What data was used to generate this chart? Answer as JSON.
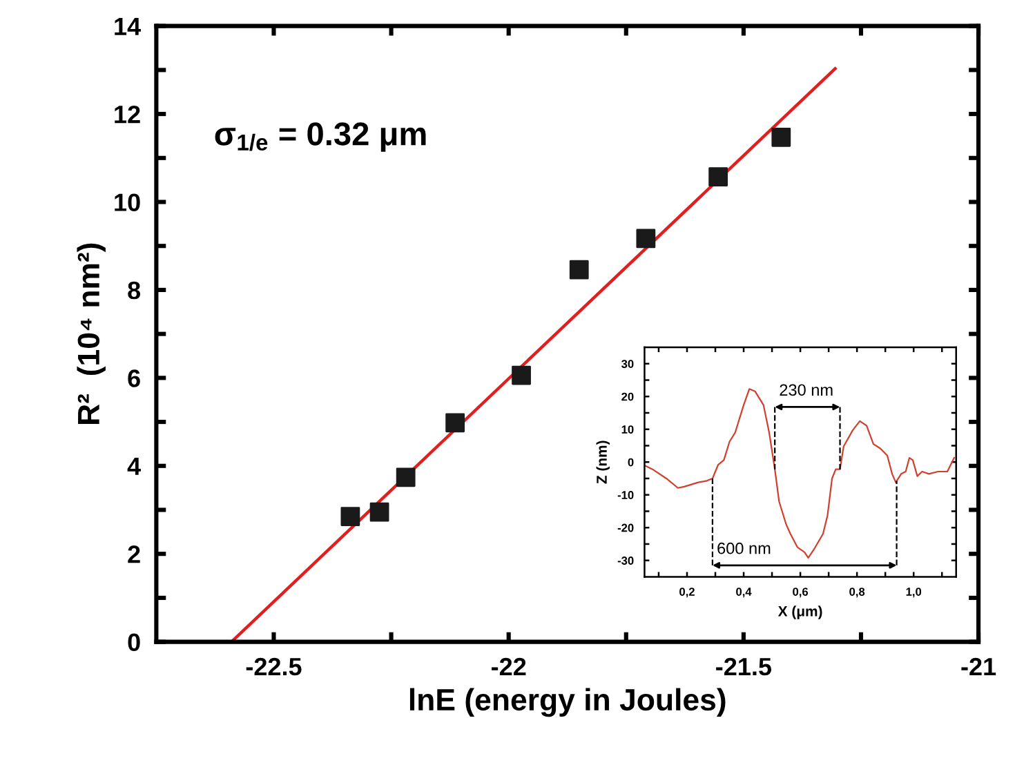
{
  "chart_data": [
    {
      "type": "scatter",
      "xlabel": "lnE (energy in Joules)",
      "ylabel": "R²  (10⁴ nm²)",
      "annotations": [
        "σ$_{1/e}$ = 0.32 μm"
      ],
      "series": [
        {
          "marker": "square",
          "x": [
            -22.337,
            -22.275,
            -22.219,
            -22.114,
            -21.973,
            -21.85,
            -21.708,
            -21.554,
            -21.42
          ],
          "values": [
            2.85,
            2.95,
            3.74,
            4.98,
            6.06,
            8.46,
            9.17,
            10.57,
            11.47
          ],
          "color": "#1a1a1a"
        },
        {
          "type": "line",
          "x": [
            -22.59,
            -21.305
          ],
          "values": [
            0,
            13.03
          ],
          "color": "#e02020",
          "marker": "none"
        }
      ],
      "xlim": [
        -22.75,
        -21.0
      ],
      "xticks": [
        {
          "value": -22.5,
          "label": "-22.5"
        },
        {
          "value": -22.25,
          "label": null
        },
        {
          "value": -22.0,
          "label": "-22"
        },
        {
          "value": -21.75,
          "label": null
        },
        {
          "value": -21.5,
          "label": "-21.5"
        },
        {
          "value": -21.25,
          "label": null
        },
        {
          "value": -21.0,
          "label": "-21"
        }
      ],
      "ylim": [
        0,
        14
      ],
      "yticks": [
        0,
        {
          "value": 1,
          "label": null
        },
        2,
        {
          "value": 3,
          "label": null
        },
        4,
        {
          "value": 5,
          "label": null
        },
        6,
        {
          "value": 7,
          "label": null
        },
        8,
        {
          "value": 9,
          "label": null
        },
        10,
        {
          "value": 11,
          "label": null
        },
        12,
        {
          "value": 13,
          "label": null
        },
        14
      ],
      "grid": false,
      "legend": false
    },
    {
      "type": "line",
      "xlabel": "X (μm)",
      "ylabel": "Z (nm)",
      "series": [
        {
          "x": [
            0.05,
            0.078,
            0.127,
            0.168,
            0.19,
            0.24,
            0.27,
            0.29,
            0.31,
            0.33,
            0.35,
            0.37,
            0.4,
            0.42,
            0.44,
            0.47,
            0.49,
            0.51,
            0.525,
            0.55,
            0.565,
            0.59,
            0.615,
            0.628,
            0.647,
            0.68,
            0.696,
            0.712,
            0.725,
            0.74,
            0.753,
            0.785,
            0.81,
            0.834,
            0.858,
            0.883,
            0.907,
            0.924,
            0.937,
            0.956,
            0.972,
            0.985,
            0.997,
            1.013,
            1.03,
            1.054,
            1.086,
            1.119,
            1.143
          ],
          "values": [
            -1,
            -2.2,
            -5,
            -7.9,
            -7.5,
            -6.2,
            -5.7,
            -5,
            -0.8,
            0.6,
            6.2,
            9,
            17.4,
            22.3,
            21.6,
            17.4,
            9,
            -2.2,
            -12,
            -19,
            -21.9,
            -26,
            -27.5,
            -29.2,
            -26.8,
            -21.9,
            -16.3,
            -5,
            -2.2,
            -2.2,
            4.8,
            9.7,
            12.5,
            11.1,
            5.5,
            4.1,
            2,
            -3.6,
            -6.2,
            -3.6,
            -2.9,
            1.3,
            0.6,
            -4.3,
            -2.9,
            -3.6,
            -2.9,
            -2.9,
            1.3
          ],
          "color": "#d04030"
        }
      ],
      "annotations": [
        "230 nm",
        "600 nm"
      ],
      "ref_lines": [
        {
          "axis": "x",
          "value": 0.51,
          "line_style": "dashed"
        },
        {
          "axis": "x",
          "value": 0.74,
          "line_style": "dashed"
        },
        {
          "axis": "x",
          "value": 0.29,
          "line_style": "dashed"
        },
        {
          "axis": "x",
          "value": 0.94,
          "line_style": "dashed"
        }
      ],
      "xlim": [
        0.05,
        1.15
      ],
      "xticks": [
        {
          "value": 0.1,
          "label": null
        },
        {
          "value": 0.2,
          "label": "0,2"
        },
        {
          "value": 0.3,
          "label": null
        },
        {
          "value": 0.4,
          "label": "0,4"
        },
        {
          "value": 0.5,
          "label": null
        },
        {
          "value": 0.6,
          "label": "0,6"
        },
        {
          "value": 0.7,
          "label": null
        },
        {
          "value": 0.8,
          "label": "0,8"
        },
        {
          "value": 0.9,
          "label": null
        },
        {
          "value": 1.0,
          "label": "1,0"
        },
        {
          "value": 1.1,
          "label": null
        }
      ],
      "ylim": [
        -35,
        35
      ],
      "yticks": [
        -30,
        {
          "value": -25,
          "label": null
        },
        -20,
        {
          "value": -15,
          "label": null
        },
        -10,
        {
          "value": -5,
          "label": null
        },
        0,
        {
          "value": 5,
          "label": null
        },
        10,
        {
          "value": 15,
          "label": null
        },
        20,
        {
          "value": 25,
          "label": null
        },
        30
      ],
      "grid": false,
      "legend": false
    }
  ]
}
